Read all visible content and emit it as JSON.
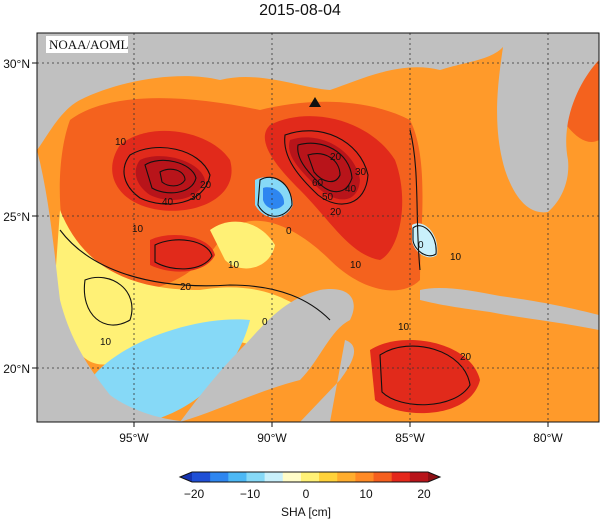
{
  "title": "2015-08-04",
  "credit": "NOAA/AOML",
  "map": {
    "lon_ticks": [
      "95°W",
      "90°W",
      "85°W",
      "80°W"
    ],
    "lat_ticks": [
      "30°N",
      "25°N",
      "20°N"
    ],
    "contour_labels": [
      "10",
      "20",
      "30",
      "40",
      "10",
      "20",
      "30",
      "40",
      "50",
      "60",
      "0",
      "0",
      "10",
      "20",
      "10",
      "20",
      "10",
      "10",
      "0",
      "10",
      "20"
    ],
    "marker": "triangle"
  },
  "colorbar": {
    "ticks": [
      "−20",
      "−10",
      "0",
      "10",
      "20"
    ],
    "label": "SHA [cm]",
    "colors": [
      "#1f4fd6",
      "#2e86f0",
      "#4cb8f5",
      "#86d9f7",
      "#c9f0fb",
      "#fffcc8",
      "#fff176",
      "#ffd23a",
      "#ffad2e",
      "#ff8a25",
      "#f55f1e",
      "#e5281b",
      "#b8141a"
    ]
  }
}
